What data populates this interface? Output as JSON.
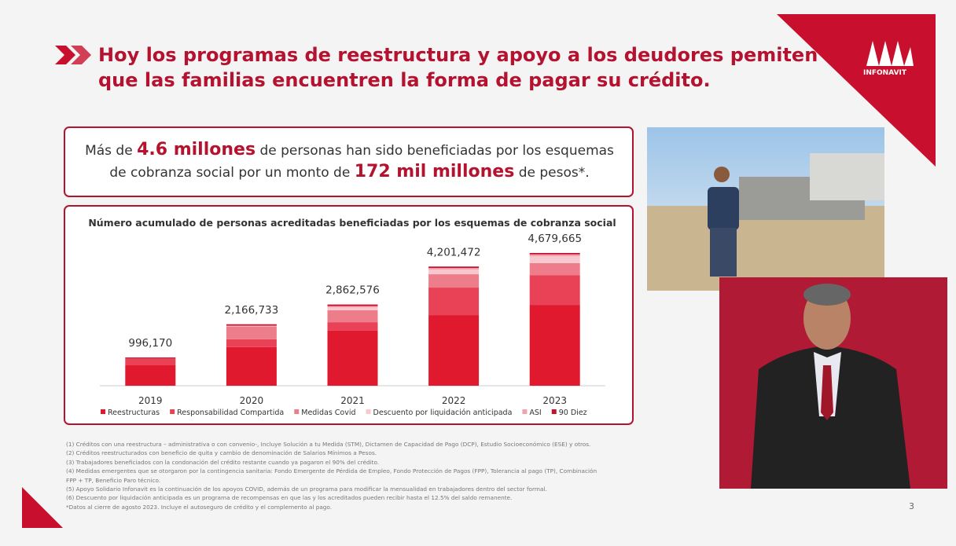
{
  "header": {
    "title_lines": [
      "Hoy los programas de reestructura y apoyo a los deudores pemiten",
      "que las familias encuentren la forma de pagar su crédito."
    ],
    "logo": "INFONAVIT"
  },
  "highlight": {
    "line1": [
      "Más de",
      "4.6 millones",
      "de personas han sido beneficiadas por los esquemas"
    ],
    "line2": [
      "de cobranza social por un monto de",
      "172 mil millones",
      "de pesos*."
    ]
  },
  "chart_data": {
    "type": "stacked-bar",
    "title": "Número acumulado de personas acreditadas beneficiadas por los esquemas de cobranza social",
    "categories": [
      "2019",
      "2020",
      "2021",
      "2022",
      "2023"
    ],
    "totals": [
      996170,
      2166733,
      2862576,
      4201472,
      4679665
    ],
    "value_labels": [
      "996,170",
      "2,166,733",
      "2,862,576",
      "4,201,472",
      "4,679,665"
    ],
    "series": [
      {
        "name": "Reestructuras",
        "color": "#e0192f",
        "values": [
          720000,
          1360000,
          1940000,
          2490000,
          2850000
        ]
      },
      {
        "name": "Responsabilidad Compartida",
        "color": "#e94257",
        "values": [
          250000,
          280000,
          300000,
          970000,
          1050000
        ]
      },
      {
        "name": "Medidas Covid",
        "color": "#ee7d8b",
        "values": [
          0,
          440000,
          420000,
          470000,
          420000
        ]
      },
      {
        "name": "Descuento por liquidación anticipada",
        "color": "#f7c9cf",
        "values": [
          0,
          0,
          100000,
          160000,
          240000
        ]
      },
      {
        "name": "ASI",
        "color": "#f2a3ad",
        "values": [
          0,
          40000,
          50000,
          60000,
          70000
        ]
      },
      {
        "name": "90 Diez",
        "color": "#c8102e",
        "values": [
          26170,
          46733,
          52576,
          51472,
          49665
        ]
      }
    ]
  },
  "footnotes": [
    "(1) Créditos con una reestructura – administrativa o con convenio-, Incluye Solución a tu Medida (STM), Dictamen de Capacidad de Pago (DCP), Estudio Socioeconómico (ESE) y otros.",
    "(2) Créditos reestructurados con beneficio de quita y cambio de denominación de Salarios Mínimos a Pesos.",
    "(3) Trabajadores beneficiados con la condonación del crédito restante cuando ya pagaron el 90% del crédito.",
    "(4) Medidas emergentes que se otorgaron por la contingencia sanitaria: Fondo Emergente de Pérdida de Empleo, Fondo Protección de Pagos (FPP), Tolerancia al pago (TP), Combinación",
    "FPP + TP, Beneficio Paro técnico.",
    "(5) Apoyo Solidario Infonavit es la continuación de los apoyos COVID, además de un programa para modificar la mensualidad en trabajadores dentro del sector formal.",
    "(6) Descuento por liquidación anticipada es un programa de recompensas en que las y los acreditados pueden recibir hasta el 12.5% del saldo remanente.",
    "*Datos al cierre de agosto 2023. Incluye el autoseguro de crédito y el complemento al pago."
  ],
  "page_number": "3"
}
